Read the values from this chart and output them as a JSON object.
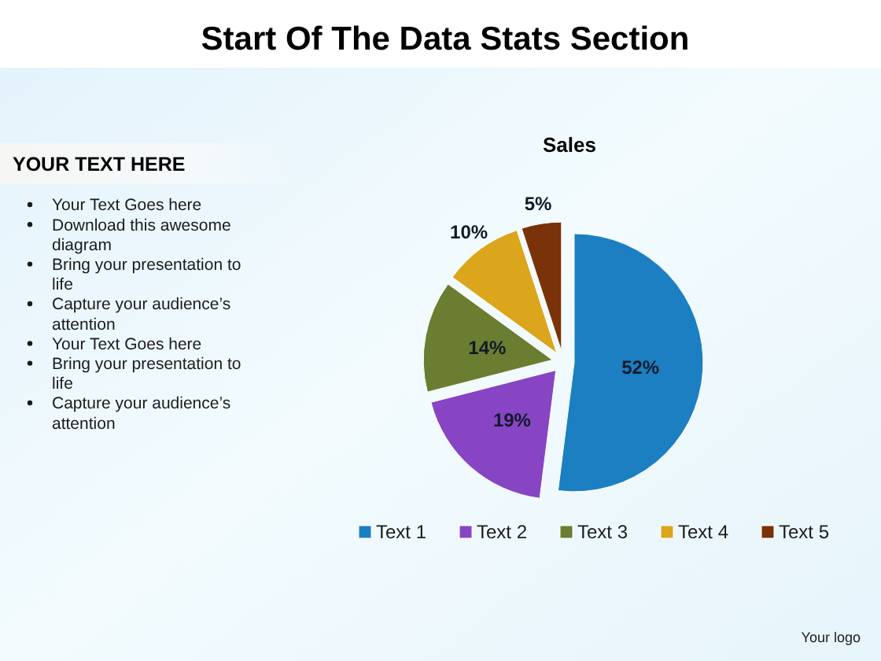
{
  "chart_data": {
    "type": "pie",
    "title": "Start Of The Data Stats Section",
    "subtitle": "Sales",
    "categories": [
      "Text 1",
      "Text 2",
      "Text 3",
      "Text 4",
      "Text 5"
    ],
    "values": [
      52,
      19,
      14,
      10,
      5
    ],
    "value_labels": [
      "52%",
      "19%",
      "14%",
      "10%",
      "5%"
    ],
    "colors": [
      "#1b7fc2",
      "#8745c4",
      "#6b7d30",
      "#dba51c",
      "#7a3208"
    ],
    "legend": "bottom",
    "annotations": [
      "YOUR TEXT HERE",
      "Your Text Goes here",
      "Download this awesome diagram",
      "Bring your presentation to life",
      "Capture your audience’s attention",
      "Your Text Goes here",
      "Bring your presentation to life",
      "Capture your audience’s attention",
      "Your logo"
    ]
  }
}
